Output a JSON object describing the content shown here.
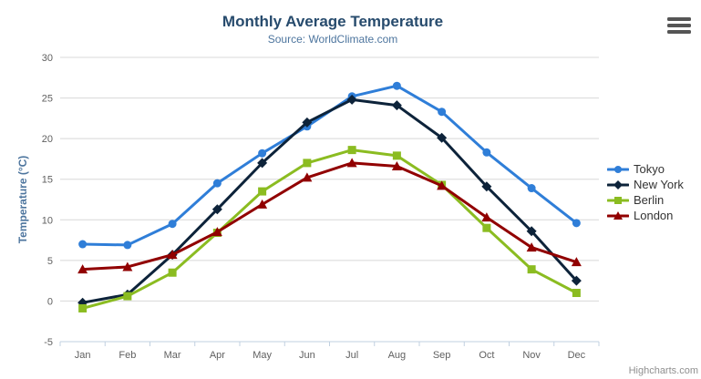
{
  "chart_data": {
    "type": "line",
    "title": "Monthly Average Temperature",
    "subtitle": "Source: WorldClimate.com",
    "categories": [
      "Jan",
      "Feb",
      "Mar",
      "Apr",
      "May",
      "Jun",
      "Jul",
      "Aug",
      "Sep",
      "Oct",
      "Nov",
      "Dec"
    ],
    "xlabel": "",
    "ylabel": "Temperature (°C)",
    "ylim": [
      -5,
      30
    ],
    "ytick_step": 5,
    "grid": true,
    "legend_position": "right",
    "series": [
      {
        "name": "Tokyo",
        "color": "#2f7ed8",
        "marker": "circle",
        "values": [
          7.0,
          6.9,
          9.5,
          14.5,
          18.2,
          21.5,
          25.2,
          26.5,
          23.3,
          18.3,
          13.9,
          9.6
        ]
      },
      {
        "name": "New York",
        "color": "#0d233a",
        "marker": "diamond",
        "values": [
          -0.2,
          0.8,
          5.7,
          11.3,
          17.0,
          22.0,
          24.8,
          24.1,
          20.1,
          14.1,
          8.6,
          2.5
        ]
      },
      {
        "name": "Berlin",
        "color": "#8bbc21",
        "marker": "square",
        "values": [
          -0.9,
          0.6,
          3.5,
          8.4,
          13.5,
          17.0,
          18.6,
          17.9,
          14.3,
          9.0,
          3.9,
          1.0
        ]
      },
      {
        "name": "London",
        "color": "#910000",
        "marker": "triangle",
        "values": [
          3.9,
          4.2,
          5.7,
          8.5,
          11.9,
          15.2,
          17.0,
          16.6,
          14.2,
          10.3,
          6.6,
          4.8
        ]
      }
    ]
  },
  "colors": {
    "title": "#274b6d",
    "subtitle": "#4d759e",
    "axis_label": "#606060",
    "axis_line": "#C0D0E0",
    "gridline": "#D8D8D8",
    "legend_text": "#333333",
    "credits": "#8f8f8f"
  },
  "controls": {
    "context_menu_icon": "hamburger-icon"
  },
  "credits": {
    "label": "Highcharts.com"
  }
}
